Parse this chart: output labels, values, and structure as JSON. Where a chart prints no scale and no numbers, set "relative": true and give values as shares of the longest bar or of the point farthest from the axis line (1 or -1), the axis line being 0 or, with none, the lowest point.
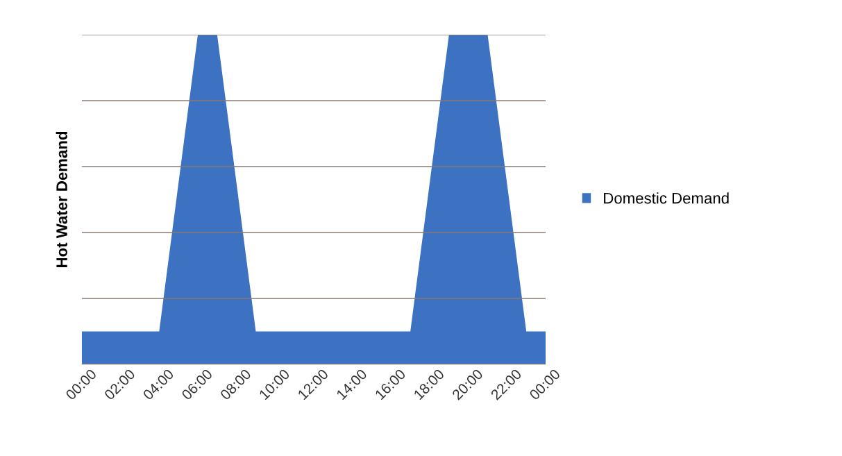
{
  "chart_data": {
    "type": "area",
    "ylabel": "Hot Water Demand",
    "relative": true,
    "x": [
      0,
      4,
      6,
      7,
      9,
      17,
      19,
      21,
      23,
      24
    ],
    "xlim": [
      0,
      24
    ],
    "xticks": [
      {
        "value": 0,
        "label": "00:00"
      },
      {
        "value": 2,
        "label": "02:00"
      },
      {
        "value": 4,
        "label": "04:00"
      },
      {
        "value": 6,
        "label": "06:00"
      },
      {
        "value": 8,
        "label": "08:00"
      },
      {
        "value": 10,
        "label": "10:00"
      },
      {
        "value": 12,
        "label": "12:00"
      },
      {
        "value": 14,
        "label": "14:00"
      },
      {
        "value": 16,
        "label": "16:00"
      },
      {
        "value": 18,
        "label": "18:00"
      },
      {
        "value": 20,
        "label": "20:00"
      },
      {
        "value": 22,
        "label": "22:00"
      },
      {
        "value": 24,
        "label": "00:00"
      }
    ],
    "series": [
      {
        "name": "Domestic Demand",
        "color": "#3d72c2",
        "values": [
          0.1,
          0.1,
          1,
          1,
          0.1,
          0.1,
          1,
          1,
          0.1,
          0.1
        ]
      }
    ],
    "grid": "y",
    "legend": "right"
  }
}
